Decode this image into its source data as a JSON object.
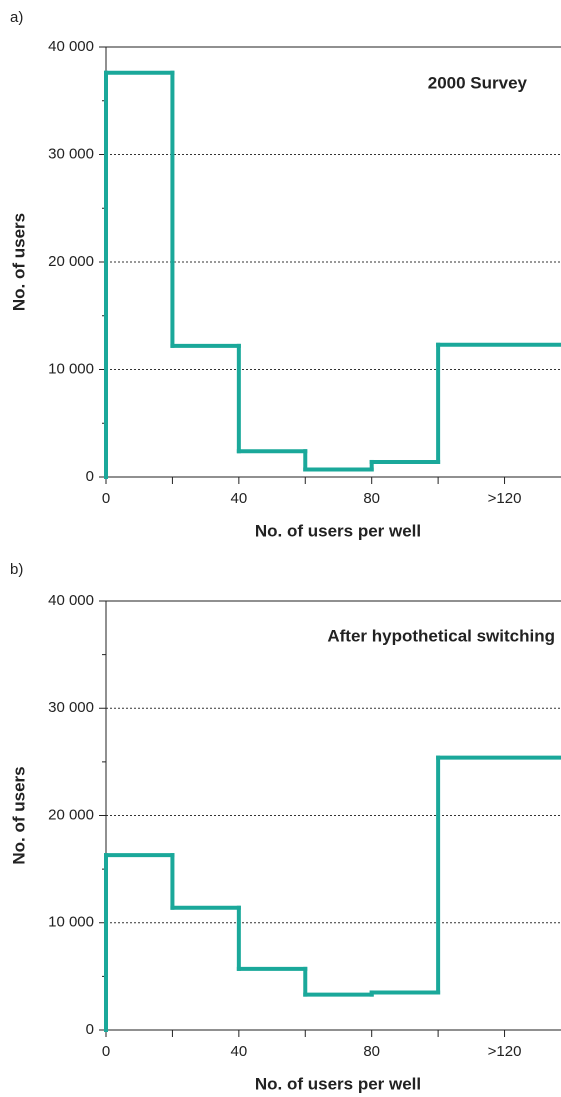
{
  "chart_data": [
    {
      "type": "histogram",
      "panel_label": "a)",
      "title": "2000 Survey",
      "x_label": "No. of users per well",
      "y_label": "No. of users",
      "bins": [
        0,
        20,
        40,
        60,
        80,
        100,
        137
      ],
      "values": [
        37600,
        12200,
        2400,
        700,
        1400,
        12300
      ],
      "color": "#1aa89a",
      "xlim": [
        0,
        137
      ],
      "ylim": [
        0,
        40000
      ],
      "xticks": [
        0,
        40,
        80,
        {
          "value": 120,
          "label": ">120"
        }
      ],
      "xminor_ticks": [
        20,
        60,
        100
      ],
      "yticks": [
        0,
        {
          "value": 10000,
          "label": "10 000"
        },
        {
          "value": 20000,
          "label": "20 000"
        },
        {
          "value": 30000,
          "label": "30 000"
        },
        {
          "value": 40000,
          "label": "40 000"
        }
      ],
      "yminor_ticks": [
        5000,
        15000,
        25000,
        35000
      ],
      "grid": true
    },
    {
      "type": "histogram",
      "panel_label": "b)",
      "title": "After hypothetical switching",
      "x_label": "No. of users per well",
      "y_label": "No. of users",
      "bins": [
        0,
        20,
        40,
        60,
        80,
        100,
        137
      ],
      "values": [
        16300,
        11400,
        5700,
        3300,
        3500,
        25400
      ],
      "color": "#1aa89a",
      "xlim": [
        0,
        137
      ],
      "ylim": [
        0,
        40000
      ],
      "xticks": [
        0,
        40,
        80,
        {
          "value": 120,
          "label": ">120"
        }
      ],
      "xminor_ticks": [
        20,
        60,
        100
      ],
      "yticks": [
        0,
        {
          "value": 10000,
          "label": "10 000"
        },
        {
          "value": 20000,
          "label": "20 000"
        },
        {
          "value": 30000,
          "label": "30 000"
        },
        {
          "value": 40000,
          "label": "40 000"
        }
      ],
      "yminor_ticks": [
        5000,
        15000,
        25000,
        35000
      ],
      "grid": true
    }
  ]
}
